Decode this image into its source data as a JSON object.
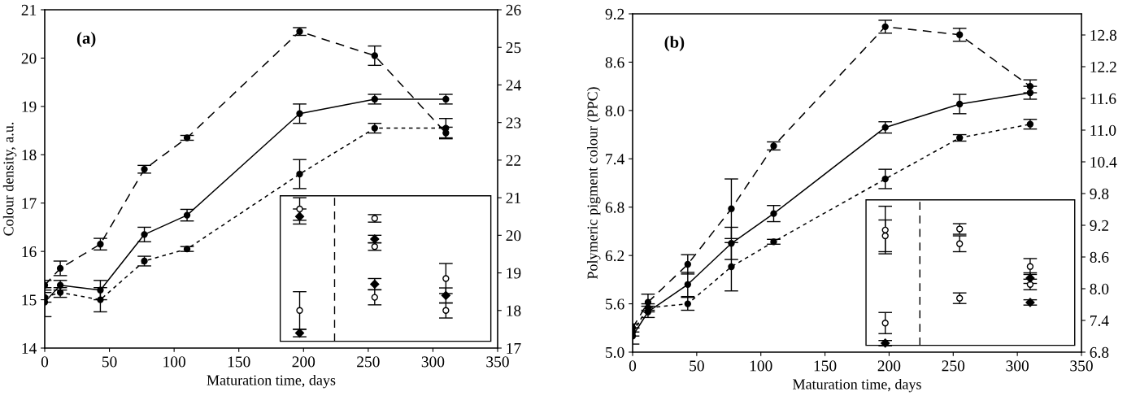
{
  "chart_data": [
    {
      "type": "line",
      "xlabel": "Maturation time, days",
      "ylabel": "Colour density, a.u.",
      "annotations": [
        "(a)"
      ],
      "xlim": [
        0,
        350
      ],
      "xticks": [
        0,
        50,
        100,
        150,
        200,
        250,
        300,
        350
      ],
      "ylim": [
        14,
        21
      ],
      "yticks": [
        14,
        15,
        16,
        17,
        18,
        19,
        20,
        21
      ],
      "y2lim": [
        17,
        26
      ],
      "y2ticks": [
        17,
        18,
        19,
        20,
        21,
        22,
        23,
        24,
        25,
        26
      ],
      "x": [
        0,
        12,
        43,
        77,
        110,
        197,
        255,
        310
      ],
      "marker": "circle",
      "grid": false,
      "ref_lines": [
        {
          "axis": "x",
          "value": 224,
          "line_style": "dashed",
          "color": "#000000"
        }
      ],
      "series": [
        {
          "color": "#000000",
          "line_style": "dashed",
          "values": [
            15.3,
            15.65,
            16.15,
            17.7,
            18.35,
            20.55,
            20.05,
            18.45
          ],
          "errors": [
            0.1,
            0.15,
            0.12,
            0.08,
            0.05,
            0.08,
            0.2,
            0.12
          ]
        },
        {
          "color": "#000000",
          "line_style": "solid",
          "values": [
            14.95,
            15.3,
            15.2,
            16.35,
            16.75,
            18.85,
            19.15,
            19.15
          ],
          "errors": [
            0.3,
            0.1,
            0.2,
            0.15,
            0.12,
            0.2,
            0.1,
            0.1
          ]
        },
        {
          "color": "#000000",
          "line_style": "dotted",
          "values": [
            15.05,
            15.15,
            15.0,
            15.8,
            16.05,
            17.6,
            18.55,
            18.55
          ],
          "errors": [
            0.1,
            0.1,
            0.25,
            0.1,
            0.05,
            0.3,
            0.1,
            0.2
          ]
        },
        {
          "type": "scatter",
          "axis": "y2",
          "marker": "circle",
          "color": "#000000",
          "x": [
            197,
            197,
            255,
            255,
            255,
            310,
            310
          ],
          "values": [
            20.7,
            18.0,
            20.45,
            19.7,
            18.35,
            18.85,
            18.0
          ],
          "errors": [
            0.3,
            0.5,
            0.1,
            0.1,
            0.2,
            0.4,
            0.2
          ]
        },
        {
          "type": "scatter",
          "axis": "y2",
          "marker": "diamond",
          "color": "#000000",
          "x": [
            197,
            197,
            255,
            255,
            310
          ],
          "values": [
            20.5,
            17.4,
            19.9,
            18.7,
            18.4
          ],
          "errors": [
            0.2,
            0.1,
            0.1,
            0.15,
            0.2
          ]
        }
      ]
    },
    {
      "type": "line",
      "xlabel": "Maturation time, days",
      "ylabel": "Polymeric pigment colour (PPC)",
      "annotations": [
        "(b)"
      ],
      "xlim": [
        0,
        350
      ],
      "xticks": [
        0,
        50,
        100,
        150,
        200,
        250,
        300,
        350
      ],
      "ylim": [
        5.0,
        9.2
      ],
      "yticks": [
        {
          "value": 5.0,
          "label": "5.0"
        },
        5.6,
        6.2,
        6.8,
        7.4,
        {
          "value": 8.0,
          "label": "8.0"
        },
        8.6,
        9.2
      ],
      "y2lim": [
        6.8,
        13.2
      ],
      "y2ticks": [
        6.8,
        7.4,
        {
          "value": 8.0,
          "label": "8.0"
        },
        8.6,
        9.2,
        9.8,
        10.4,
        {
          "value": 11.0,
          "label": "11.0"
        },
        11.6,
        12.2,
        12.8
      ],
      "x": [
        0,
        12,
        43,
        77,
        110,
        197,
        255,
        310
      ],
      "marker": "circle",
      "grid": false,
      "ref_lines": [
        {
          "axis": "x",
          "value": 224,
          "line_style": "dashed",
          "color": "#000000"
        }
      ],
      "series": [
        {
          "color": "#000000",
          "line_style": "dashed",
          "values": [
            5.3,
            5.62,
            6.09,
            6.78,
            7.56,
            9.04,
            8.94,
            8.3
          ],
          "errors": [
            0.05,
            0.1,
            0.12,
            0.37,
            0.05,
            0.08,
            0.08,
            0.08
          ]
        },
        {
          "color": "#000000",
          "line_style": "solid",
          "values": [
            5.2,
            5.5,
            5.84,
            6.35,
            6.72,
            7.79,
            8.08,
            8.22
          ],
          "errors": [
            0.1,
            0.07,
            0.15,
            0.2,
            0.1,
            0.07,
            0.12,
            0.08
          ]
        },
        {
          "color": "#000000",
          "line_style": "dotted",
          "values": [
            5.25,
            5.55,
            5.6,
            6.06,
            6.37,
            7.15,
            7.66,
            7.83
          ],
          "errors": [
            0.05,
            0.05,
            0.08,
            0.3,
            0.03,
            0.12,
            0.04,
            0.06
          ]
        },
        {
          "type": "scatter",
          "axis": "y2",
          "marker": "circle",
          "color": "#000000",
          "x": [
            197,
            197,
            197,
            255,
            255,
            255,
            310,
            310
          ],
          "values": [
            9.11,
            9.0,
            7.35,
            9.13,
            8.85,
            7.82,
            8.42,
            8.08
          ],
          "errors": [
            0.45,
            0.3,
            0.2,
            0.1,
            0.15,
            0.1,
            0.15,
            0.1
          ]
        },
        {
          "type": "scatter",
          "axis": "y2",
          "marker": "diamond",
          "color": "#000000",
          "x": [
            197,
            310,
            310
          ],
          "values": [
            6.97,
            8.2,
            7.74
          ],
          "errors": [
            0.05,
            0.1,
            0.05
          ]
        }
      ]
    }
  ]
}
